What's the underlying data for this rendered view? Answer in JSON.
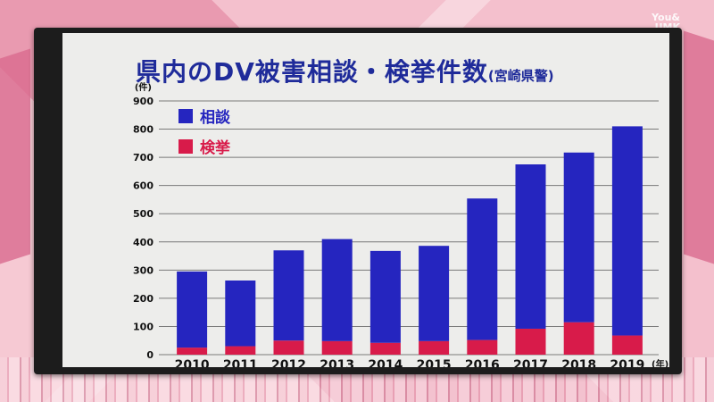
{
  "watermark": {
    "line1": "You&",
    "line2": "UMK"
  },
  "chart_data": {
    "type": "bar",
    "stacked": true,
    "title": "県内のDV被害相談・検挙件数",
    "subtitle": "(宮崎県警)",
    "y_unit_label": "(件)",
    "x_unit_label": "(年)",
    "categories": [
      "2010",
      "2011",
      "2012",
      "2013",
      "2014",
      "2015",
      "2016",
      "2017",
      "2018",
      "2019"
    ],
    "series": [
      {
        "name": "検挙",
        "color": "#d81b4a",
        "values": [
          25,
          30,
          50,
          48,
          42,
          48,
          52,
          92,
          115,
          68
        ]
      },
      {
        "name": "相談",
        "color": "#2525bf",
        "values": [
          270,
          233,
          320,
          362,
          326,
          338,
          502,
          583,
          602,
          742
        ]
      }
    ],
    "legend_order": [
      "相談",
      "検挙"
    ],
    "legend_position": "top-left",
    "ylim": [
      0,
      900
    ],
    "yticks": [
      0,
      100,
      200,
      300,
      400,
      500,
      600,
      700,
      800,
      900
    ],
    "grid": true
  }
}
